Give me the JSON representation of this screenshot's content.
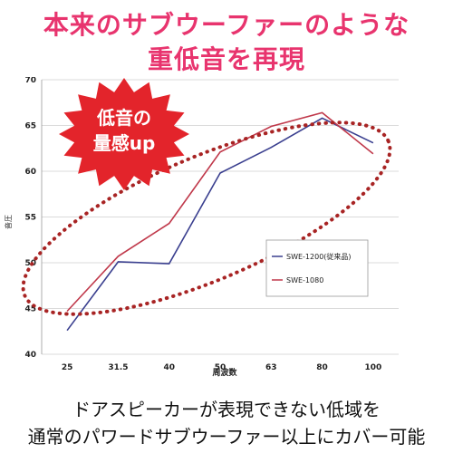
{
  "header": {
    "line1": "本来のサブウーファーのような",
    "line2": "重低音を再現"
  },
  "footer": {
    "line1": "ドアスピーカーが表現できない低域を",
    "line2": "通常のパワードサブウーファー以上にカバー可能"
  },
  "burst": {
    "line1": "低音の",
    "line2": "量感up"
  },
  "colors": {
    "accent": "#e8346e",
    "series1": "#3a3f8f",
    "series2": "#c0394b",
    "ellipse": "#a82424",
    "burst": "#e3242b"
  },
  "chart_data": {
    "type": "line",
    "categories": [
      "25",
      "31.5",
      "40",
      "50",
      "63",
      "80",
      "100"
    ],
    "ylabel": "音圧",
    "xlabel": "周波数",
    "ylim": [
      40,
      70
    ],
    "yticks": [
      40,
      45,
      50,
      55,
      60,
      65,
      70
    ],
    "grid": "y",
    "legend": "inside-right",
    "series": [
      {
        "name": "SWE-1200(従来品)",
        "values": [
          42.6,
          50.1,
          49.9,
          59.8,
          62.6,
          65.8,
          63.1
        ]
      },
      {
        "name": "SWE-1080",
        "values": [
          44.7,
          50.7,
          54.3,
          62.1,
          64.9,
          66.4,
          61.9
        ]
      }
    ]
  }
}
